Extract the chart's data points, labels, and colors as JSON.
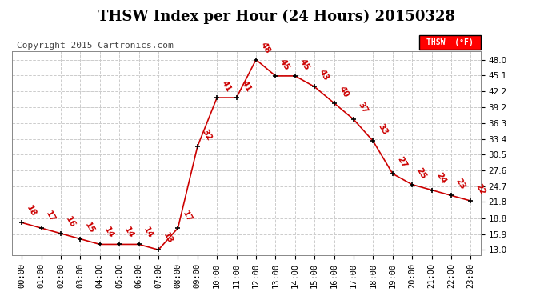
{
  "title": "THSW Index per Hour (24 Hours) 20150328",
  "copyright": "Copyright 2015 Cartronics.com",
  "legend_label": "THSW  (°F)",
  "hours": [
    0,
    1,
    2,
    3,
    4,
    5,
    6,
    7,
    8,
    9,
    10,
    11,
    12,
    13,
    14,
    15,
    16,
    17,
    18,
    19,
    20,
    21,
    22,
    23
  ],
  "values": [
    18,
    17,
    16,
    15,
    14,
    14,
    14,
    13,
    17,
    32,
    41,
    41,
    48,
    45,
    45,
    43,
    40,
    37,
    33,
    27,
    25,
    24,
    23,
    22
  ],
  "yticks": [
    13.0,
    15.9,
    18.8,
    21.8,
    24.7,
    27.6,
    30.5,
    33.4,
    36.3,
    39.2,
    42.2,
    45.1,
    48.0
  ],
  "ylim": [
    12.0,
    49.5
  ],
  "line_color": "#cc0000",
  "marker_color": "#000000",
  "grid_color": "#cccccc",
  "background_color": "#ffffff",
  "title_fontsize": 13,
  "copyright_fontsize": 8,
  "label_fontsize": 7.5,
  "tick_fontsize": 7.5
}
